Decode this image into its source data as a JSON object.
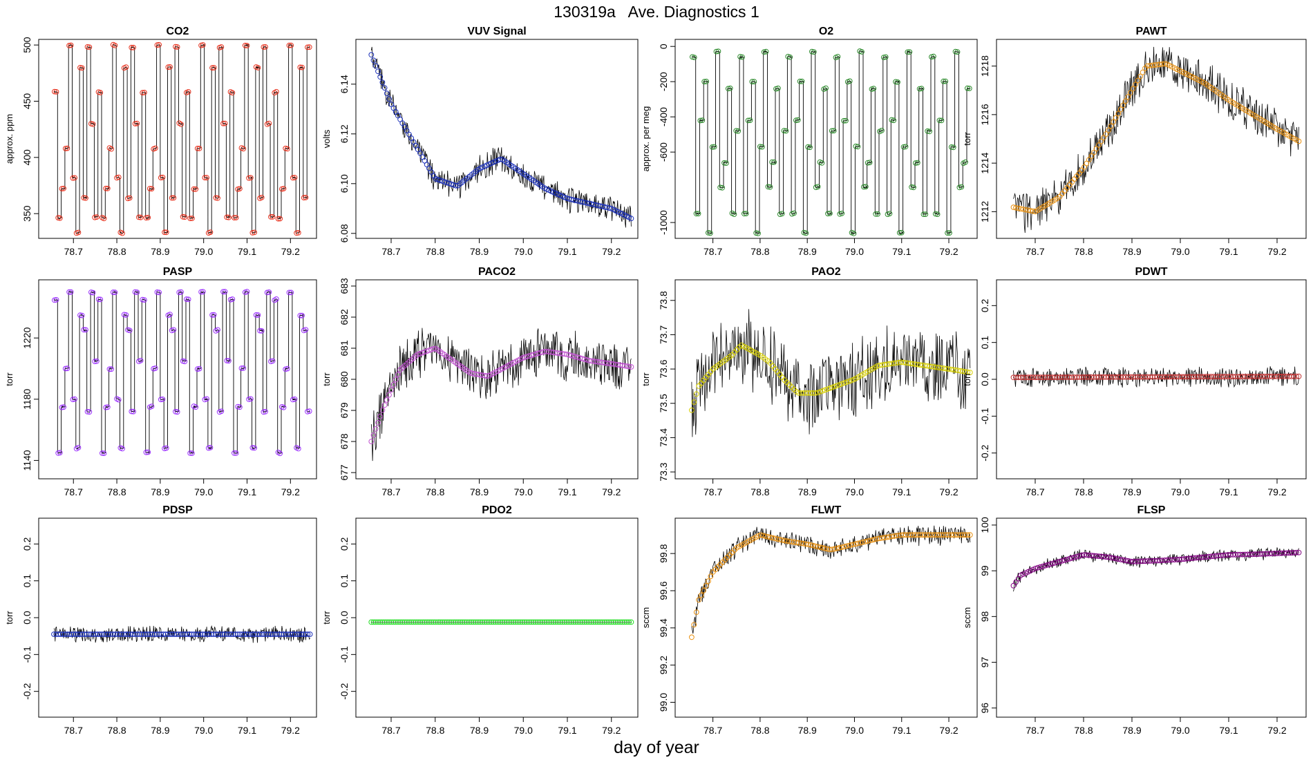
{
  "figure": {
    "title": "130319a   Ave. Diagnostics 1",
    "xlabel": "day of year"
  },
  "chart_data": [
    {
      "id": "co2",
      "type": "line",
      "title": "CO2",
      "ylabel": "approx. ppm",
      "xlim": [
        78.62,
        79.26
      ],
      "ylim": [
        328,
        505
      ],
      "xticks": [
        "78.7",
        "78.8",
        "78.9",
        "79.0",
        "79.1",
        "79.2"
      ],
      "yticks": [
        "350",
        "400",
        "450",
        "500"
      ],
      "marker_color": "#e8321e",
      "pattern": "switch",
      "levels": [
        458,
        346,
        372,
        408,
        500,
        382,
        333,
        480,
        364,
        498,
        430,
        347
      ],
      "noise": 0
    },
    {
      "id": "vuv",
      "type": "line",
      "title": "VUV Signal",
      "ylabel": "volts",
      "xlim": [
        78.62,
        79.26
      ],
      "ylim": [
        6.078,
        6.158
      ],
      "xticks": [
        "78.7",
        "78.8",
        "78.9",
        "79.0",
        "79.1",
        "79.2"
      ],
      "yticks": [
        "6.08",
        "6.10",
        "6.12",
        "6.14"
      ],
      "marker_color": "#1a2fb8",
      "pattern": "trend",
      "trend": [
        [
          78.65,
          6.154
        ],
        [
          78.7,
          6.132
        ],
        [
          78.75,
          6.117
        ],
        [
          78.8,
          6.102
        ],
        [
          78.85,
          6.099
        ],
        [
          78.9,
          6.106
        ],
        [
          78.95,
          6.11
        ],
        [
          79.0,
          6.104
        ],
        [
          79.05,
          6.098
        ],
        [
          79.1,
          6.094
        ],
        [
          79.15,
          6.092
        ],
        [
          79.2,
          6.09
        ],
        [
          79.245,
          6.086
        ]
      ],
      "noise": 0.006
    },
    {
      "id": "o2",
      "type": "line",
      "title": "O2",
      "ylabel": "approx. per meg",
      "xlim": [
        78.62,
        79.26
      ],
      "ylim": [
        -1090,
        40
      ],
      "xticks": [
        "78.7",
        "78.8",
        "78.9",
        "79.0",
        "79.1",
        "79.2"
      ],
      "yticks": [
        "0",
        "-200",
        "-400",
        "-600",
        "-1000"
      ],
      "marker_color": "#2e8b2e",
      "pattern": "switch",
      "levels": [
        -60,
        -950,
        -420,
        -200,
        -1060,
        -570,
        -30,
        -800,
        -660,
        -240,
        -950,
        -480
      ],
      "noise": 0
    },
    {
      "id": "pawt",
      "type": "line",
      "title": "PAWT",
      "ylabel": "torr",
      "xlim": [
        78.62,
        79.26
      ],
      "ylim": [
        1210.9,
        1219.1
      ],
      "xticks": [
        "78.7",
        "78.8",
        "78.9",
        "79.0",
        "79.1",
        "79.2"
      ],
      "yticks": [
        "1212",
        "1214",
        "1216",
        "1218"
      ],
      "marker_color": "#e89010",
      "pattern": "trend",
      "trend": [
        [
          78.65,
          1212.2
        ],
        [
          78.7,
          1212.0
        ],
        [
          78.75,
          1212.6
        ],
        [
          78.8,
          1213.8
        ],
        [
          78.85,
          1215.3
        ],
        [
          78.9,
          1217.0
        ],
        [
          78.93,
          1218.0
        ],
        [
          78.97,
          1218.1
        ],
        [
          79.0,
          1217.8
        ],
        [
          79.05,
          1217.3
        ],
        [
          79.1,
          1216.6
        ],
        [
          79.15,
          1216.0
        ],
        [
          79.2,
          1215.4
        ],
        [
          79.245,
          1214.9
        ]
      ],
      "noise": 1.0
    },
    {
      "id": "pasp",
      "type": "line",
      "title": "PASP",
      "ylabel": "torr",
      "xlim": [
        78.62,
        79.26
      ],
      "ylim": [
        1128,
        1258
      ],
      "xticks": [
        "78.7",
        "78.8",
        "78.9",
        "79.0",
        "79.1",
        "79.2"
      ],
      "yticks": [
        "1140",
        "1180",
        "1220"
      ],
      "marker_color": "#9b30ff",
      "pattern": "switch",
      "levels": [
        1245,
        1145,
        1175,
        1200,
        1250,
        1180,
        1148,
        1235,
        1225,
        1172,
        1250,
        1205
      ],
      "noise": 0
    },
    {
      "id": "paco2",
      "type": "line",
      "title": "PACO2",
      "ylabel": "torr",
      "xlim": [
        78.62,
        79.26
      ],
      "ylim": [
        676.8,
        683.2
      ],
      "xticks": [
        "78.7",
        "78.8",
        "78.9",
        "79.0",
        "79.1",
        "79.2"
      ],
      "yticks": [
        "677",
        "678",
        "679",
        "680",
        "681",
        "682",
        "683"
      ],
      "marker_color": "#c050d0",
      "pattern": "trend",
      "trend": [
        [
          78.65,
          677.8
        ],
        [
          78.68,
          679.0
        ],
        [
          78.72,
          680.3
        ],
        [
          78.76,
          680.8
        ],
        [
          78.8,
          681.0
        ],
        [
          78.84,
          680.6
        ],
        [
          78.88,
          680.2
        ],
        [
          78.92,
          680.1
        ],
        [
          78.96,
          680.4
        ],
        [
          79.0,
          680.7
        ],
        [
          79.05,
          680.9
        ],
        [
          79.1,
          680.8
        ],
        [
          79.15,
          680.6
        ],
        [
          79.2,
          680.5
        ],
        [
          79.245,
          680.4
        ]
      ],
      "noise": 0.9
    },
    {
      "id": "pao2",
      "type": "line",
      "title": "PAO2",
      "ylabel": "torr",
      "xlim": [
        78.62,
        79.26
      ],
      "ylim": [
        73.28,
        73.86
      ],
      "xticks": [
        "78.7",
        "78.8",
        "78.9",
        "79.0",
        "79.1",
        "79.2"
      ],
      "yticks": [
        "73.3",
        "73.4",
        "73.5",
        "73.6",
        "73.7",
        "73.8"
      ],
      "marker_color": "#d8d000",
      "pattern": "trend",
      "trend": [
        [
          78.655,
          73.48
        ],
        [
          78.67,
          73.55
        ],
        [
          78.7,
          73.6
        ],
        [
          78.74,
          73.64
        ],
        [
          78.76,
          73.67
        ],
        [
          78.8,
          73.64
        ],
        [
          78.82,
          73.62
        ],
        [
          78.85,
          73.57
        ],
        [
          78.88,
          73.53
        ],
        [
          78.92,
          73.53
        ],
        [
          78.96,
          73.55
        ],
        [
          79.0,
          73.57
        ],
        [
          79.05,
          73.61
        ],
        [
          79.1,
          73.62
        ],
        [
          79.15,
          73.61
        ],
        [
          79.2,
          73.6
        ],
        [
          79.245,
          73.59
        ]
      ],
      "noise": 0.13
    },
    {
      "id": "pdwt",
      "type": "line",
      "title": "PDWT",
      "ylabel": "torr",
      "xlim": [
        78.62,
        79.26
      ],
      "ylim": [
        -0.27,
        0.27
      ],
      "xticks": [
        "78.7",
        "78.8",
        "78.9",
        "79.0",
        "79.1",
        "79.2"
      ],
      "yticks": [
        "-0.2",
        "-0.1",
        "0.0",
        "0.1",
        "0.2"
      ],
      "marker_color": "#c03030",
      "pattern": "trend",
      "trend": [
        [
          78.65,
          0.005
        ],
        [
          79.245,
          0.008
        ]
      ],
      "noise": 0.03
    },
    {
      "id": "pdsp",
      "type": "line",
      "title": "PDSP",
      "ylabel": "torr",
      "xlim": [
        78.62,
        79.26
      ],
      "ylim": [
        -0.27,
        0.27
      ],
      "xticks": [
        "78.7",
        "78.8",
        "78.9",
        "79.0",
        "79.1",
        "79.2"
      ],
      "yticks": [
        "-0.2",
        "-0.1",
        "0.0",
        "0.1",
        "0.2"
      ],
      "marker_color": "#1a2fb8",
      "pattern": "trend",
      "trend": [
        [
          78.65,
          -0.045
        ],
        [
          79.245,
          -0.045
        ]
      ],
      "noise": 0.025
    },
    {
      "id": "pdo2",
      "type": "line",
      "title": "PDO2",
      "ylabel": "torr",
      "xlim": [
        78.62,
        79.26
      ],
      "ylim": [
        -0.27,
        0.27
      ],
      "xticks": [
        "78.7",
        "78.8",
        "78.9",
        "79.0",
        "79.1",
        "79.2"
      ],
      "yticks": [
        "-0.2",
        "-0.1",
        "0.0",
        "0.1",
        "0.2"
      ],
      "marker_color": "#22dd22",
      "pattern": "trend",
      "trend": [
        [
          78.65,
          -0.012
        ],
        [
          79.245,
          -0.012
        ]
      ],
      "noise": 0
    },
    {
      "id": "flwt",
      "type": "line",
      "title": "FLWT",
      "ylabel": "sccm",
      "xlim": [
        78.62,
        79.26
      ],
      "ylim": [
        98.92,
        99.99
      ],
      "xticks": [
        "78.7",
        "78.8",
        "78.9",
        "79.0",
        "79.1",
        "79.2"
      ],
      "yticks": [
        "99.0",
        "99.2",
        "99.4",
        "99.6",
        "99.8"
      ],
      "marker_color": "#e89010",
      "pattern": "trend",
      "trend": [
        [
          78.655,
          99.35
        ],
        [
          78.67,
          99.55
        ],
        [
          78.7,
          99.7
        ],
        [
          78.75,
          99.83
        ],
        [
          78.8,
          99.9
        ],
        [
          78.85,
          99.87
        ],
        [
          78.9,
          99.85
        ],
        [
          78.95,
          99.82
        ],
        [
          79.0,
          99.85
        ],
        [
          79.05,
          99.88
        ],
        [
          79.1,
          99.9
        ],
        [
          79.15,
          99.9
        ],
        [
          79.2,
          99.9
        ],
        [
          79.245,
          99.9
        ]
      ],
      "noise": 0.06
    },
    {
      "id": "flsp",
      "type": "line",
      "title": "FLSP",
      "ylabel": "sccm",
      "xlim": [
        78.62,
        79.26
      ],
      "ylim": [
        95.8,
        100.15
      ],
      "xticks": [
        "78.7",
        "78.8",
        "78.9",
        "79.0",
        "79.1",
        "79.2"
      ],
      "yticks": [
        "96",
        "97",
        "98",
        "99",
        "100"
      ],
      "marker_color": "#800080",
      "pattern": "trend",
      "trend": [
        [
          78.65,
          98.6
        ],
        [
          78.67,
          98.9
        ],
        [
          78.7,
          99.05
        ],
        [
          78.75,
          99.2
        ],
        [
          78.8,
          99.35
        ],
        [
          78.85,
          99.3
        ],
        [
          78.9,
          99.2
        ],
        [
          78.95,
          99.22
        ],
        [
          79.0,
          99.25
        ],
        [
          79.05,
          99.3
        ],
        [
          79.1,
          99.35
        ],
        [
          79.15,
          99.36
        ],
        [
          79.2,
          99.38
        ],
        [
          79.245,
          99.4
        ]
      ],
      "noise": 0.15
    }
  ]
}
